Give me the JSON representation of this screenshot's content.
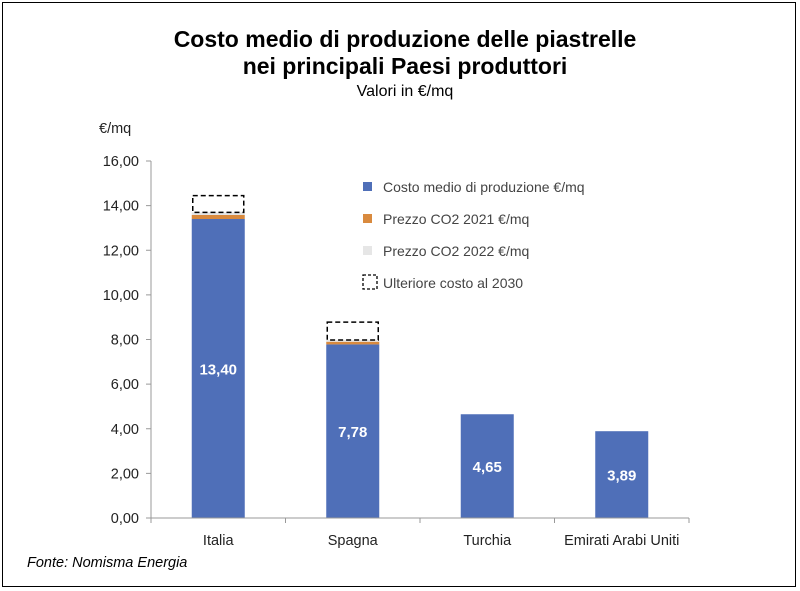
{
  "chart_data": {
    "type": "bar",
    "stacked": true,
    "title_line1": "Costo medio di produzione delle piastrelle",
    "title_line2": "nei principali Paesi produttori",
    "subtitle": "Valori in €/mq",
    "ylabel": "€/mq",
    "ylim": [
      0,
      16
    ],
    "yticks": [
      "0,00",
      "2,00",
      "4,00",
      "6,00",
      "8,00",
      "10,00",
      "12,00",
      "14,00",
      "16,00"
    ],
    "ytick_values": [
      0,
      2,
      4,
      6,
      8,
      10,
      12,
      14,
      16
    ],
    "categories": [
      "Italia",
      "Spagna",
      "Turchia",
      "Emirati Arabi Uniti"
    ],
    "series": [
      {
        "name": "Costo medio di produzione €/mq",
        "color": "#4f6fb8",
        "values": [
          13.4,
          7.78,
          4.65,
          3.89
        ],
        "labels": [
          "13,40",
          "7,78",
          "4,65",
          "3,89"
        ]
      },
      {
        "name": "Prezzo CO2 2021 €/mq",
        "color": "#d98a3e",
        "values": [
          0.18,
          0.12,
          0,
          0
        ]
      },
      {
        "name": "Prezzo CO2 2022 €/mq",
        "color": "#e6e6e6",
        "values": [
          0.12,
          0.08,
          0,
          0
        ]
      },
      {
        "name": "Ulteriore costo al 2030",
        "style": "dashed-outline",
        "values": [
          0.75,
          0.8,
          0,
          0
        ]
      }
    ],
    "grid": false,
    "legend_position": "top-right"
  },
  "source": "Fonte: Nomisma Energia"
}
